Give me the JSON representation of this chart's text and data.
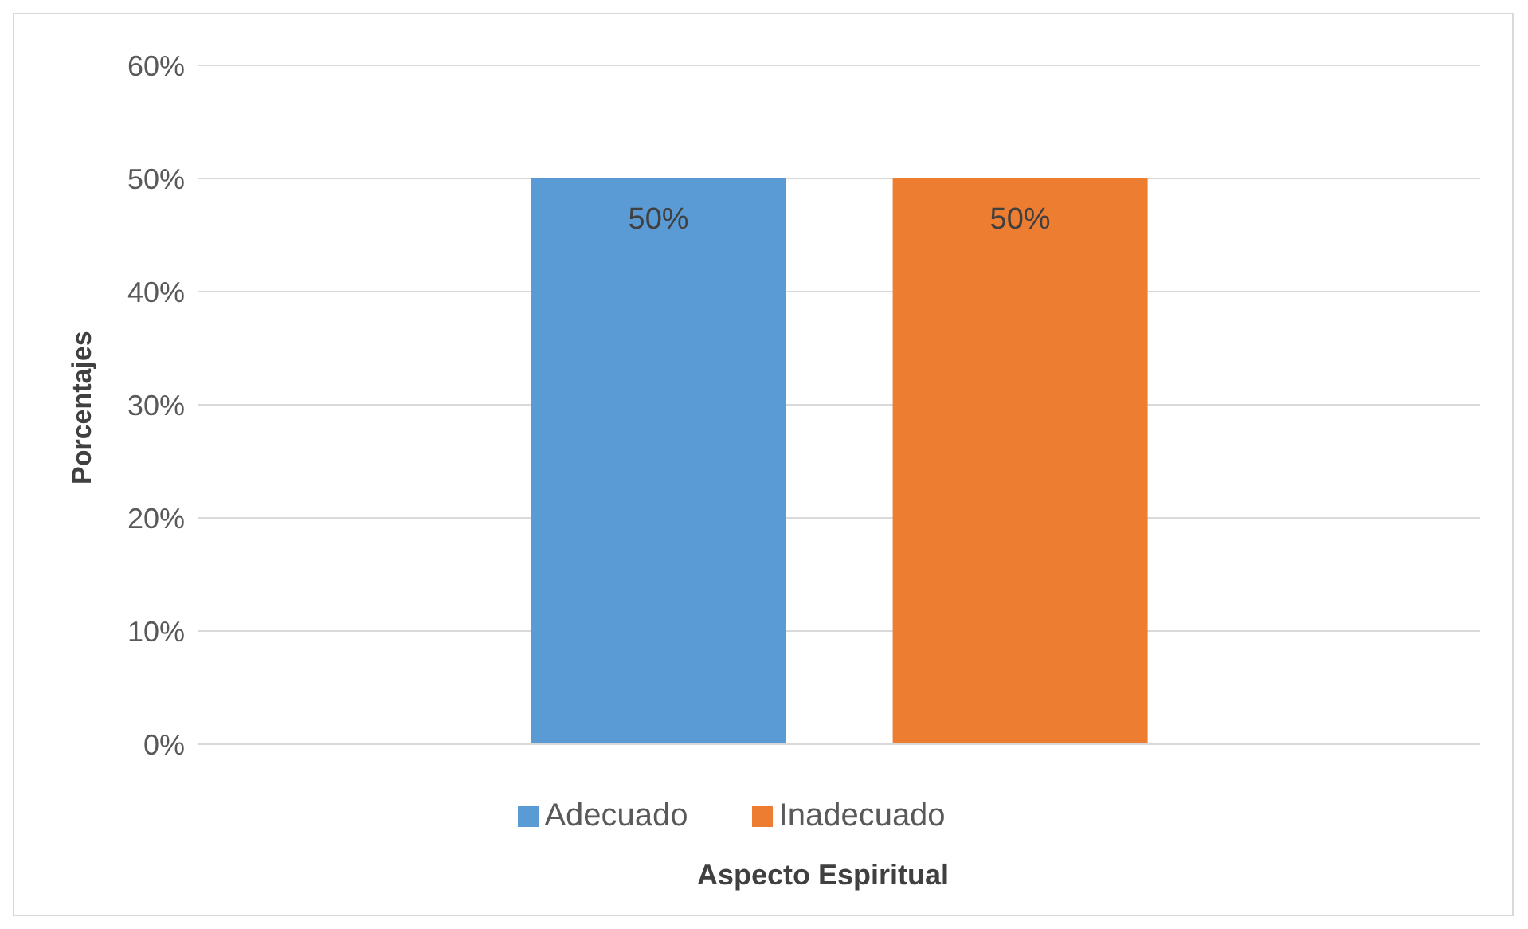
{
  "chart_data": {
    "type": "bar",
    "xlabel": "Aspecto Espiritual",
    "ylabel": "Porcentajes",
    "categories": [
      null
    ],
    "series": [
      {
        "name": "Adecuado",
        "color": "#5b9bd5",
        "values": [
          50
        ],
        "value_labels": [
          "50%"
        ]
      },
      {
        "name": "Inadecuado",
        "color": "#ed7d31",
        "values": [
          50
        ],
        "value_labels": [
          "50%"
        ]
      }
    ],
    "ylim": [
      0,
      60
    ],
    "yticks": [
      {
        "value": 0,
        "label": "0%"
      },
      {
        "value": 10,
        "label": "10%"
      },
      {
        "value": 20,
        "label": "20%"
      },
      {
        "value": 30,
        "label": "30%"
      },
      {
        "value": 40,
        "label": "40%"
      },
      {
        "value": 50,
        "label": "50%"
      },
      {
        "value": 60,
        "label": "60%"
      }
    ],
    "grid": "y",
    "legend": "bottom"
  }
}
